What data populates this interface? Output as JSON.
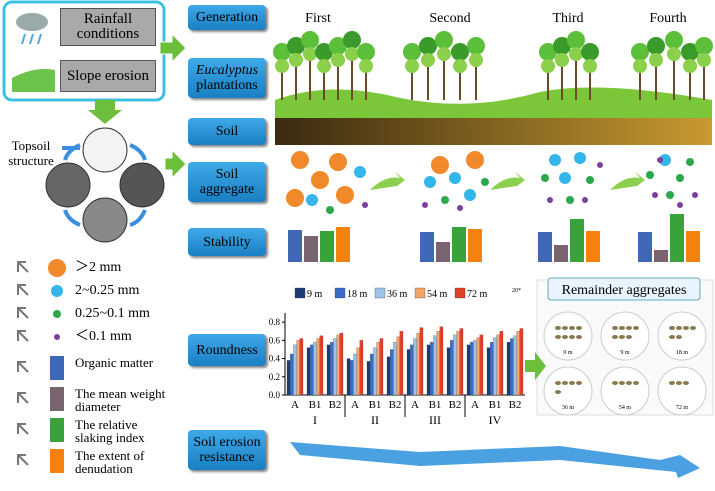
{
  "drivers": {
    "rainfall": "Rainfall conditions",
    "slope": "Slope erosion"
  },
  "topsoil": "Topsoil structure",
  "rows": {
    "generation": "Generation",
    "plantations": {
      "species": "Eucalyptus",
      "label": "plantations"
    },
    "soil": "Soil",
    "aggregate": "Soil aggregate",
    "stability": "Stability",
    "roundness": "Roundness",
    "resistance": "Soil erosion resistance"
  },
  "generations": [
    "First",
    "Second",
    "Third",
    "Fourth"
  ],
  "size_legend": [
    {
      "label": "＞2 mm",
      "color": "#f08a2a"
    },
    {
      "label": "2~0.25 mm",
      "color": "#35b6ea"
    },
    {
      "label": "0.25~0.1 mm",
      "color": "#2aa84a"
    },
    {
      "label": "＜0.1 mm",
      "color": "#7b3fa0"
    }
  ],
  "indicator_legend": [
    {
      "label": "Organic matter",
      "color": "#3e68b5"
    },
    {
      "label": "The mean weight diameter",
      "color": "#7a6470"
    },
    {
      "label": "The relative slaking index",
      "color": "#3aa23a"
    },
    {
      "label": "The extent of denudation",
      "color": "#f5820f"
    }
  ],
  "stability": [
    [
      32,
      26,
      31,
      35
    ],
    [
      30,
      20,
      35,
      33
    ],
    [
      30,
      17,
      43,
      31
    ],
    [
      30,
      12,
      48,
      31
    ]
  ],
  "roundness": {
    "type": "bar",
    "categories": [
      "A",
      "B1",
      "B2",
      "A",
      "B1",
      "B2",
      "A",
      "B1",
      "B2",
      "A",
      "B1",
      "B2"
    ],
    "groups": [
      "I",
      "II",
      "III",
      "IV"
    ],
    "annotation": "20*",
    "ylim": [
      0,
      0.9
    ],
    "yticks": [
      {
        "value": 0,
        "label": "0.0"
      },
      0.2,
      0.4,
      0.6,
      0.8
    ],
    "series": [
      {
        "name": "9 m",
        "color": "#1f3a7a",
        "values": [
          0.38,
          0.52,
          0.55,
          0.4,
          0.37,
          0.42,
          0.5,
          0.55,
          0.52,
          0.55,
          0.52,
          0.58
        ]
      },
      {
        "name": "18 m",
        "color": "#3a6cc8",
        "values": [
          0.45,
          0.55,
          0.58,
          0.38,
          0.45,
          0.5,
          0.55,
          0.58,
          0.6,
          0.58,
          0.58,
          0.62
        ]
      },
      {
        "name": "36 m",
        "color": "#9cc3e6",
        "values": [
          0.55,
          0.58,
          0.62,
          0.45,
          0.52,
          0.58,
          0.62,
          0.65,
          0.66,
          0.6,
          0.63,
          0.65
        ]
      },
      {
        "name": "54 m",
        "color": "#f4a46a",
        "values": [
          0.6,
          0.62,
          0.66,
          0.52,
          0.58,
          0.64,
          0.68,
          0.7,
          0.7,
          0.63,
          0.66,
          0.7
        ]
      },
      {
        "name": "72 m",
        "color": "#e0402a",
        "values": [
          0.62,
          0.65,
          0.68,
          0.6,
          0.62,
          0.7,
          0.74,
          0.75,
          0.73,
          0.66,
          0.7,
          0.73
        ]
      }
    ]
  },
  "remainder": {
    "title": "Remainder aggregates",
    "samples": [
      "0 m",
      "9 m",
      "18 m",
      "36 m",
      "54 m",
      "72 m"
    ]
  }
}
